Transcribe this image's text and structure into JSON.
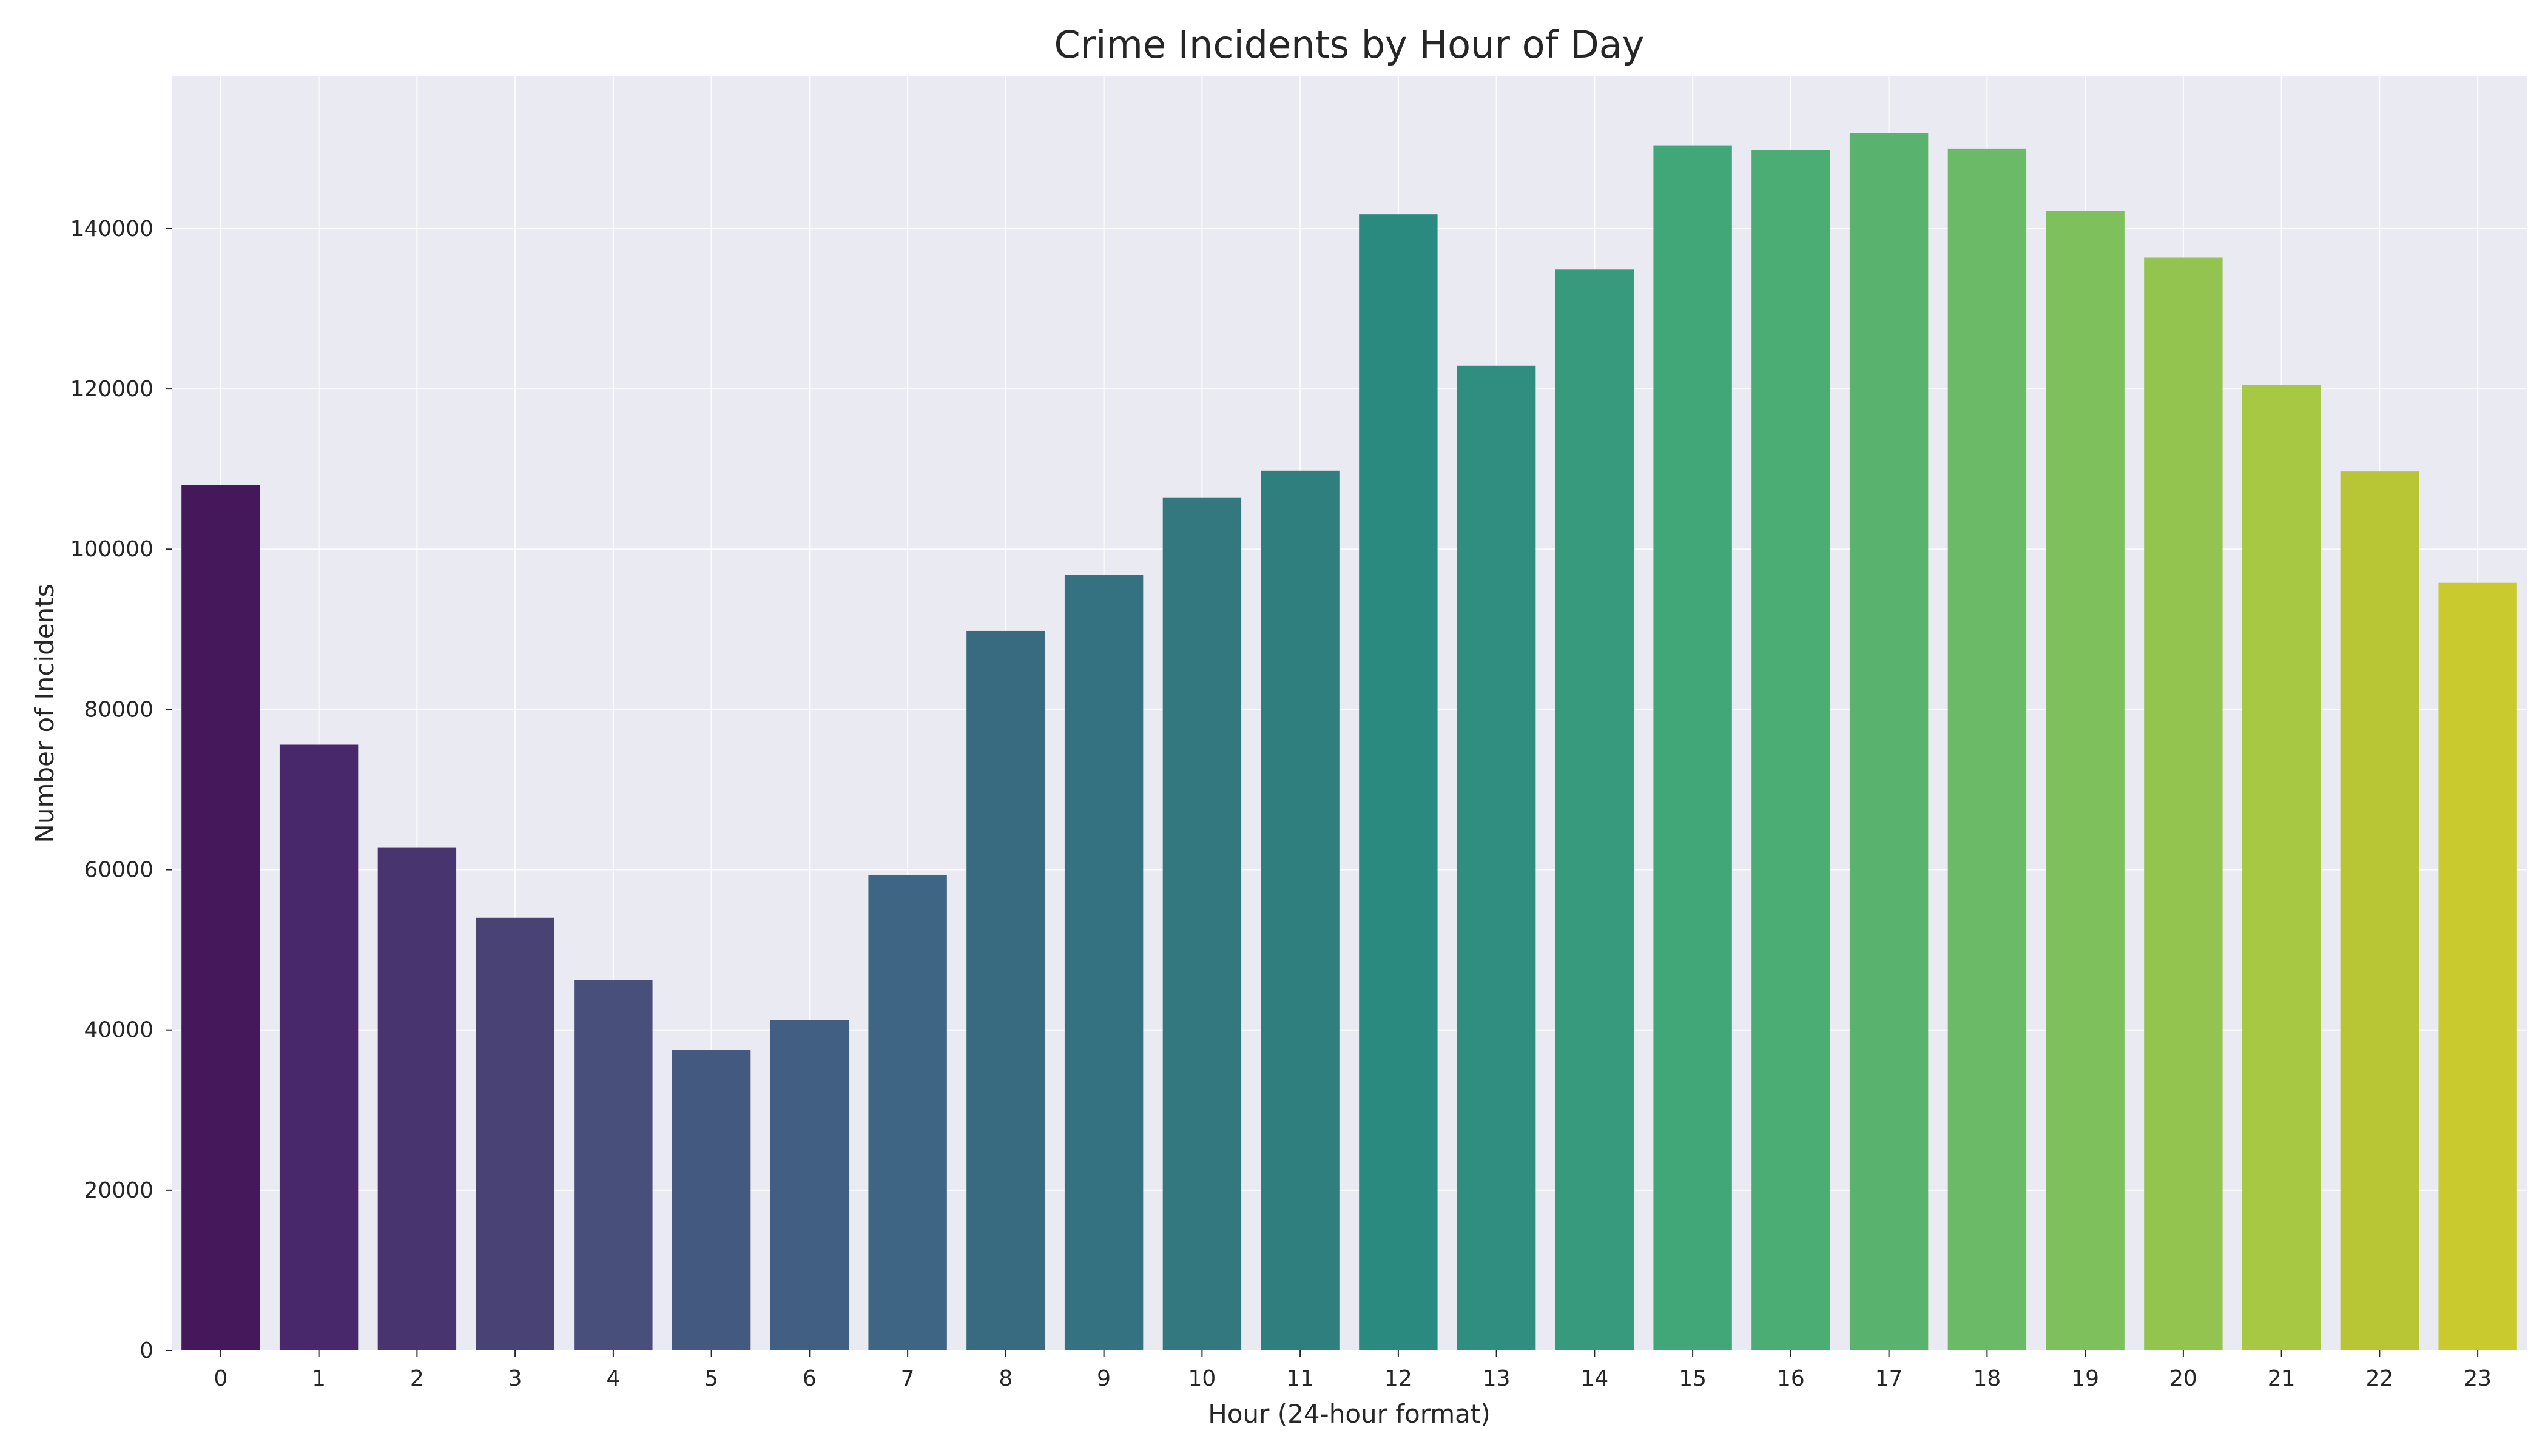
{
  "chart_data": {
    "type": "bar",
    "title": "Crime Incidents by Hour of Day",
    "xlabel": "Hour (24-hour format)",
    "ylabel": "Number of Incidents",
    "categories": [
      "0",
      "1",
      "2",
      "3",
      "4",
      "5",
      "6",
      "7",
      "8",
      "9",
      "10",
      "11",
      "12",
      "13",
      "14",
      "15",
      "16",
      "17",
      "18",
      "19",
      "20",
      "21",
      "22",
      "23"
    ],
    "values": [
      108000,
      75600,
      62800,
      54000,
      46200,
      37500,
      41200,
      59300,
      89800,
      96800,
      106400,
      109800,
      141800,
      122900,
      134900,
      150400,
      149800,
      151900,
      150000,
      142200,
      136400,
      120500,
      109700,
      95800
    ],
    "ylim": [
      0,
      159000
    ],
    "yticks": [
      0,
      20000,
      40000,
      60000,
      80000,
      100000,
      120000,
      140000
    ],
    "ytick_labels": [
      "0",
      "20000",
      "40000",
      "60000",
      "80000",
      "100000",
      "120000",
      "140000"
    ],
    "grid": true,
    "colors": [
      "#45185c",
      "#48286a",
      "#483570",
      "#494375",
      "#474f7a",
      "#44597f",
      "#415f82",
      "#3e6584",
      "#386a80",
      "#347281",
      "#32787e",
      "#2f7f7f",
      "#2a8a7f",
      "#2f8e80",
      "#379a7c",
      "#41a678",
      "#4bac74",
      "#59b26d",
      "#6aba67",
      "#7ec15c",
      "#93c450",
      "#a6c842",
      "#b8c635",
      "#c8ca2e"
    ]
  }
}
